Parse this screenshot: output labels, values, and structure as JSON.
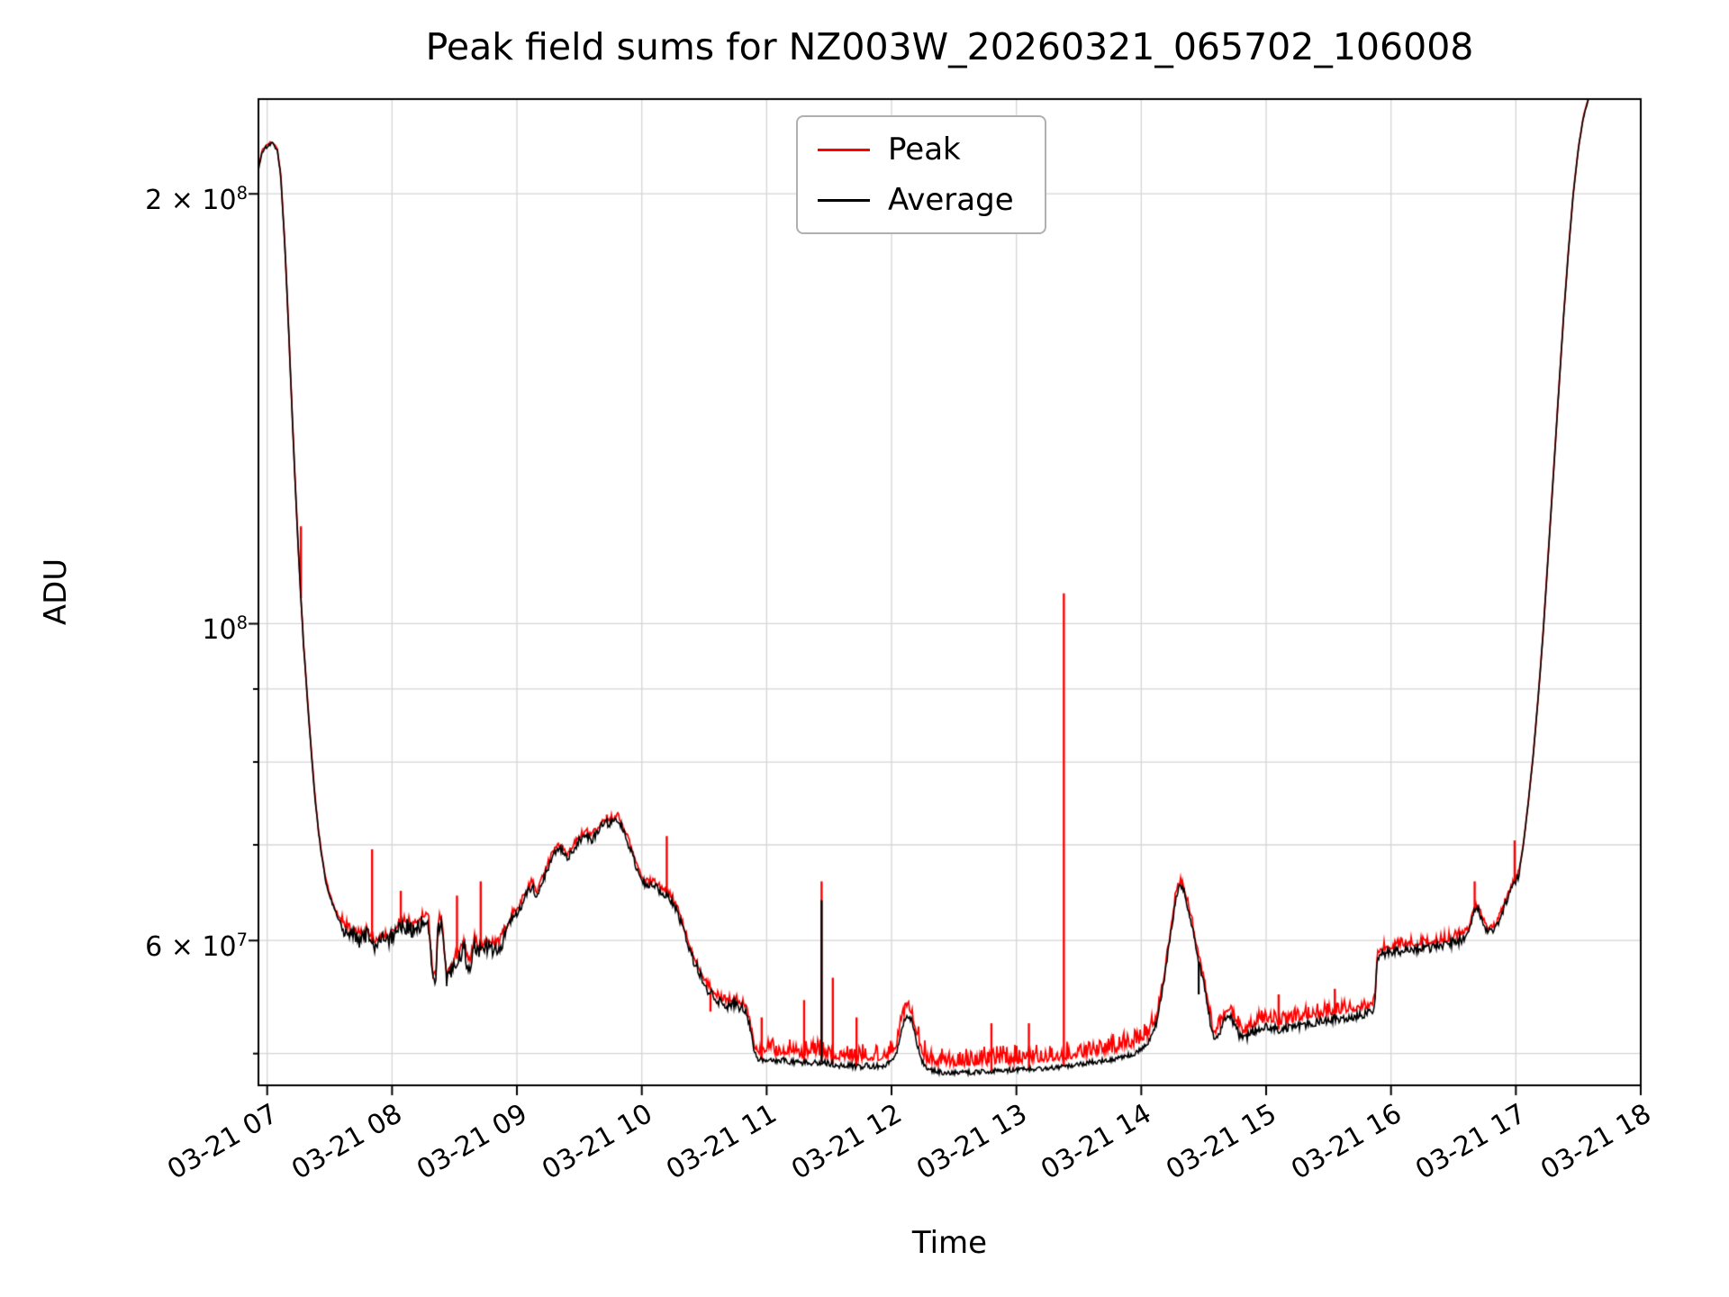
{
  "chart": {
    "title": "Peak field sums for NZ003W_20260321_065702_106008",
    "xlabel": "Time",
    "ylabel": "ADU"
  },
  "chart_data": {
    "type": "line",
    "title": "Peak field sums for NZ003W_20260321_065702_106008",
    "xlabel": "Time",
    "ylabel": "ADU",
    "yscale": "log",
    "legend_position": "upper center",
    "grid": true,
    "grid_color": "#d6d6d6",
    "x_unit": "hour of day on 2026-03-21",
    "v_unit": 10000000,
    "xlim": [
      6.93,
      18.0
    ],
    "ylim": [
      4.75,
      23.3
    ],
    "x_ticks": [
      {
        "t": 7,
        "label": "03-21 07"
      },
      {
        "t": 8,
        "label": "03-21 08"
      },
      {
        "t": 9,
        "label": "03-21 09"
      },
      {
        "t": 10,
        "label": "03-21 10"
      },
      {
        "t": 11,
        "label": "03-21 11"
      },
      {
        "t": 12,
        "label": "03-21 12"
      },
      {
        "t": 13,
        "label": "03-21 13"
      },
      {
        "t": 14,
        "label": "03-21 14"
      },
      {
        "t": 15,
        "label": "03-21 15"
      },
      {
        "t": 16,
        "label": "03-21 16"
      },
      {
        "t": 17,
        "label": "03-21 17"
      },
      {
        "t": 18,
        "label": "03-21 18"
      }
    ],
    "y_ticks": [
      {
        "v": 20,
        "label": "2 × 10^8"
      },
      {
        "v": 10,
        "label": "10^8"
      },
      {
        "v": 6,
        "label": "6 × 10^7"
      }
    ],
    "y_grid": [
      5,
      6,
      7,
      8,
      9,
      10,
      20
    ],
    "series": [
      {
        "name": "Peak",
        "color": "#ff0000"
      },
      {
        "name": "Average",
        "color": "#000000"
      }
    ],
    "seed": 1337,
    "base_points": [
      [
        6.93,
        20.8
      ],
      [
        6.96,
        21.4
      ],
      [
        7.0,
        21.6
      ],
      [
        7.04,
        21.7
      ],
      [
        7.08,
        21.5
      ],
      [
        7.11,
        20.5
      ],
      [
        7.14,
        18.5
      ],
      [
        7.17,
        16.2
      ],
      [
        7.2,
        14.0
      ],
      [
        7.23,
        12.2
      ],
      [
        7.26,
        10.8
      ],
      [
        7.29,
        9.7
      ],
      [
        7.32,
        8.9
      ],
      [
        7.35,
        8.2
      ],
      [
        7.38,
        7.6
      ],
      [
        7.41,
        7.15
      ],
      [
        7.44,
        6.85
      ],
      [
        7.47,
        6.6
      ],
      [
        7.5,
        6.45
      ],
      [
        7.54,
        6.3
      ],
      [
        7.58,
        6.2
      ],
      [
        7.62,
        6.1
      ],
      [
        7.68,
        6.05
      ],
      [
        7.74,
        6.0
      ],
      [
        7.8,
        6.05
      ],
      [
        7.86,
        5.95
      ],
      [
        7.92,
        6.0
      ],
      [
        7.98,
        6.0
      ],
      [
        8.04,
        6.1
      ],
      [
        8.1,
        6.15
      ],
      [
        8.16,
        6.1
      ],
      [
        8.22,
        6.15
      ],
      [
        8.26,
        6.2
      ],
      [
        8.29,
        6.2
      ],
      [
        8.31,
        5.85
      ],
      [
        8.33,
        5.62
      ],
      [
        8.35,
        5.62
      ],
      [
        8.37,
        6.15
      ],
      [
        8.4,
        6.15
      ],
      [
        8.42,
        5.8
      ],
      [
        8.44,
        5.62
      ],
      [
        8.46,
        5.66
      ],
      [
        8.5,
        5.8
      ],
      [
        8.54,
        5.85
      ],
      [
        8.58,
        5.92
      ],
      [
        8.6,
        5.76
      ],
      [
        8.63,
        5.78
      ],
      [
        8.66,
        5.95
      ],
      [
        8.7,
        5.9
      ],
      [
        8.74,
        5.92
      ],
      [
        8.78,
        5.95
      ],
      [
        8.82,
        5.9
      ],
      [
        8.87,
        5.95
      ],
      [
        8.92,
        6.1
      ],
      [
        8.97,
        6.25
      ],
      [
        9.02,
        6.3
      ],
      [
        9.07,
        6.45
      ],
      [
        9.12,
        6.55
      ],
      [
        9.16,
        6.45
      ],
      [
        9.2,
        6.6
      ],
      [
        9.25,
        6.75
      ],
      [
        9.3,
        6.9
      ],
      [
        9.35,
        6.95
      ],
      [
        9.4,
        6.85
      ],
      [
        9.45,
        6.95
      ],
      [
        9.5,
        7.05
      ],
      [
        9.55,
        7.1
      ],
      [
        9.6,
        7.05
      ],
      [
        9.65,
        7.15
      ],
      [
        9.7,
        7.25
      ],
      [
        9.75,
        7.25
      ],
      [
        9.8,
        7.3
      ],
      [
        9.84,
        7.2
      ],
      [
        9.88,
        7.05
      ],
      [
        9.92,
        6.9
      ],
      [
        9.96,
        6.75
      ],
      [
        10.0,
        6.6
      ],
      [
        10.05,
        6.55
      ],
      [
        10.1,
        6.55
      ],
      [
        10.15,
        6.5
      ],
      [
        10.2,
        6.45
      ],
      [
        10.24,
        6.4
      ],
      [
        10.28,
        6.3
      ],
      [
        10.32,
        6.15
      ],
      [
        10.36,
        6.0
      ],
      [
        10.4,
        5.85
      ],
      [
        10.44,
        5.75
      ],
      [
        10.48,
        5.65
      ],
      [
        10.52,
        5.55
      ],
      [
        10.56,
        5.5
      ],
      [
        10.6,
        5.45
      ],
      [
        10.64,
        5.42
      ],
      [
        10.68,
        5.4
      ],
      [
        10.72,
        5.42
      ],
      [
        10.76,
        5.4
      ],
      [
        10.8,
        5.38
      ],
      [
        10.84,
        5.35
      ],
      [
        10.87,
        5.2
      ],
      [
        10.9,
        5.0
      ],
      [
        10.94,
        4.95
      ],
      [
        11.0,
        4.95
      ],
      [
        11.06,
        4.93
      ],
      [
        11.12,
        4.95
      ],
      [
        11.2,
        4.93
      ],
      [
        11.28,
        4.92
      ],
      [
        11.36,
        4.93
      ],
      [
        11.44,
        4.93
      ],
      [
        11.52,
        4.92
      ],
      [
        11.6,
        4.9
      ],
      [
        11.7,
        4.9
      ],
      [
        11.8,
        4.9
      ],
      [
        11.9,
        4.9
      ],
      [
        11.98,
        4.92
      ],
      [
        12.04,
        5.0
      ],
      [
        12.08,
        5.2
      ],
      [
        12.12,
        5.32
      ],
      [
        12.16,
        5.28
      ],
      [
        12.2,
        5.1
      ],
      [
        12.24,
        4.95
      ],
      [
        12.28,
        4.88
      ],
      [
        12.4,
        4.85
      ],
      [
        12.6,
        4.85
      ],
      [
        12.8,
        4.86
      ],
      [
        13.0,
        4.87
      ],
      [
        13.2,
        4.88
      ],
      [
        13.4,
        4.9
      ],
      [
        13.6,
        4.93
      ],
      [
        13.8,
        4.96
      ],
      [
        13.95,
        5.0
      ],
      [
        14.05,
        5.08
      ],
      [
        14.12,
        5.25
      ],
      [
        14.18,
        5.6
      ],
      [
        14.24,
        6.1
      ],
      [
        14.28,
        6.45
      ],
      [
        14.31,
        6.55
      ],
      [
        14.34,
        6.5
      ],
      [
        14.38,
        6.3
      ],
      [
        14.42,
        6.05
      ],
      [
        14.46,
        5.8
      ],
      [
        14.5,
        5.6
      ],
      [
        14.54,
        5.35
      ],
      [
        14.57,
        5.15
      ],
      [
        14.6,
        5.12
      ],
      [
        14.64,
        5.2
      ],
      [
        14.68,
        5.3
      ],
      [
        14.72,
        5.3
      ],
      [
        14.76,
        5.2
      ],
      [
        14.8,
        5.12
      ],
      [
        14.86,
        5.15
      ],
      [
        14.92,
        5.2
      ],
      [
        15.0,
        5.22
      ],
      [
        15.1,
        5.2
      ],
      [
        15.2,
        5.22
      ],
      [
        15.35,
        5.25
      ],
      [
        15.5,
        5.28
      ],
      [
        15.65,
        5.3
      ],
      [
        15.78,
        5.33
      ],
      [
        15.84,
        5.35
      ],
      [
        15.87,
        5.38
      ],
      [
        15.89,
        5.85
      ],
      [
        15.95,
        5.88
      ],
      [
        16.05,
        5.9
      ],
      [
        16.15,
        5.92
      ],
      [
        16.25,
        5.92
      ],
      [
        16.35,
        5.94
      ],
      [
        16.45,
        5.96
      ],
      [
        16.55,
        6.0
      ],
      [
        16.62,
        6.08
      ],
      [
        16.66,
        6.28
      ],
      [
        16.7,
        6.32
      ],
      [
        16.74,
        6.15
      ],
      [
        16.78,
        6.08
      ],
      [
        16.84,
        6.12
      ],
      [
        16.9,
        6.3
      ],
      [
        16.94,
        6.45
      ],
      [
        16.98,
        6.55
      ],
      [
        17.02,
        6.65
      ],
      [
        17.06,
        7.0
      ],
      [
        17.1,
        7.5
      ],
      [
        17.14,
        8.1
      ],
      [
        17.18,
        8.9
      ],
      [
        17.22,
        9.9
      ],
      [
        17.26,
        11.2
      ],
      [
        17.3,
        12.7
      ],
      [
        17.34,
        14.4
      ],
      [
        17.38,
        16.3
      ],
      [
        17.42,
        18.2
      ],
      [
        17.46,
        20.0
      ],
      [
        17.5,
        21.5
      ],
      [
        17.54,
        22.6
      ],
      [
        17.58,
        23.3
      ],
      [
        17.62,
        23.8
      ],
      [
        17.7,
        24.3
      ],
      [
        17.8,
        24.6
      ]
    ],
    "noise_regions": [
      [
        6.93,
        7.6,
        0.003,
        0.006
      ],
      [
        7.6,
        8.9,
        0.013,
        0.02
      ],
      [
        8.9,
        10.36,
        0.007,
        0.014
      ],
      [
        10.36,
        10.88,
        0.008,
        0.018
      ],
      [
        10.88,
        11.98,
        0.005,
        0.038
      ],
      [
        11.98,
        14.1,
        0.004,
        0.042
      ],
      [
        14.1,
        14.55,
        0.006,
        0.018
      ],
      [
        14.55,
        15.88,
        0.007,
        0.03
      ],
      [
        15.88,
        16.6,
        0.008,
        0.02
      ],
      [
        16.6,
        17.04,
        0.006,
        0.013
      ],
      [
        17.04,
        18.0,
        0.0015,
        0.003
      ]
    ],
    "spikes": [
      {
        "t": 7.27,
        "v": 11.7,
        "kind": "peak"
      },
      {
        "t": 7.84,
        "v": 6.95,
        "kind": "peak"
      },
      {
        "t": 8.07,
        "v": 6.5,
        "kind": "peak"
      },
      {
        "t": 8.52,
        "v": 6.45,
        "kind": "peak"
      },
      {
        "t": 8.71,
        "v": 6.6,
        "kind": "peak"
      },
      {
        "t": 9.72,
        "v": 7.35,
        "kind": "peak"
      },
      {
        "t": 10.2,
        "v": 7.1,
        "kind": "peak"
      },
      {
        "t": 10.55,
        "v": 5.35,
        "kind": "peak"
      },
      {
        "t": 10.96,
        "v": 5.3,
        "kind": "peak"
      },
      {
        "t": 11.3,
        "v": 5.45,
        "kind": "peak"
      },
      {
        "t": 11.44,
        "v": 6.6,
        "kind": "both"
      },
      {
        "t": 11.53,
        "v": 5.65,
        "kind": "peak"
      },
      {
        "t": 11.72,
        "v": 5.3,
        "kind": "peak"
      },
      {
        "t": 12.18,
        "v": 5.2,
        "kind": "peak"
      },
      {
        "t": 12.8,
        "v": 5.25,
        "kind": "peak"
      },
      {
        "t": 13.1,
        "v": 5.25,
        "kind": "peak"
      },
      {
        "t": 13.38,
        "v": 10.5,
        "kind": "peak"
      },
      {
        "t": 15.1,
        "v": 5.5,
        "kind": "peak"
      },
      {
        "t": 15.55,
        "v": 5.55,
        "kind": "peak"
      },
      {
        "t": 16.67,
        "v": 6.6,
        "kind": "peak"
      },
      {
        "t": 16.99,
        "v": 7.05,
        "kind": "peak"
      },
      {
        "t": 14.46,
        "v": 5.5,
        "kind": "avg"
      }
    ]
  }
}
